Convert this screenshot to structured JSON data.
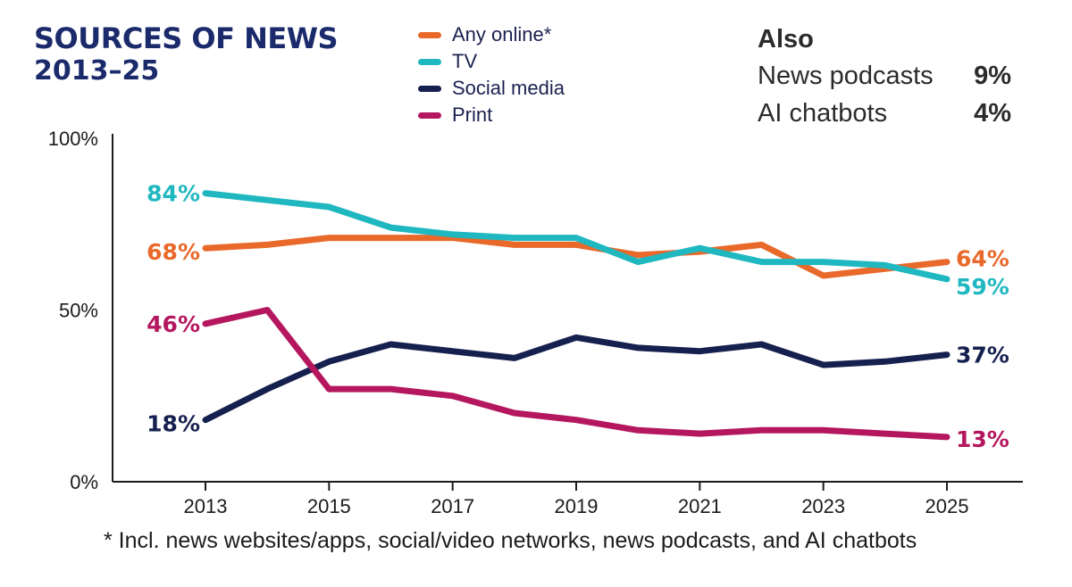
{
  "title": "SOURCES OF NEWS",
  "subtitle": "2013–25",
  "also": {
    "title": "Also",
    "items": [
      {
        "label": "News podcasts",
        "value": "9%"
      },
      {
        "label": "AI chatbots",
        "value": "4%"
      }
    ]
  },
  "footnote": "* Incl. news websites/apps, social/video networks, news podcasts, and AI chatbots",
  "chart_data": {
    "type": "line",
    "x": [
      2013,
      2014,
      2015,
      2016,
      2017,
      2018,
      2019,
      2020,
      2021,
      2022,
      2023,
      2024,
      2025
    ],
    "x_tick_labels": [
      "2013",
      "2015",
      "2017",
      "2019",
      "2021",
      "2023",
      "2025"
    ],
    "y_tick_labels": [
      "100%",
      "50%",
      "0%"
    ],
    "ylim": [
      0,
      100
    ],
    "grid": false,
    "legend_position": "top-center",
    "series": [
      {
        "name": "Any online*",
        "color": "#e8692a",
        "values": [
          68,
          69,
          71,
          71,
          71,
          69,
          69,
          66,
          67,
          69,
          60,
          62,
          64
        ],
        "start_label": "68%",
        "end_label": "64%"
      },
      {
        "name": "TV",
        "color": "#1fb8c0",
        "values": [
          84,
          82,
          80,
          74,
          72,
          71,
          71,
          64,
          68,
          64,
          64,
          63,
          59
        ],
        "start_label": "84%",
        "end_label": "59%"
      },
      {
        "name": "Social media",
        "color": "#16204f",
        "values": [
          18,
          27,
          35,
          40,
          38,
          36,
          42,
          39,
          38,
          40,
          34,
          35,
          37
        ],
        "start_label": "18%",
        "end_label": "37%"
      },
      {
        "name": "Print",
        "color": "#b5175f",
        "values": [
          46,
          50,
          27,
          27,
          25,
          20,
          18,
          15,
          14,
          15,
          15,
          14,
          13
        ],
        "start_label": "46%",
        "end_label": "13%"
      }
    ]
  }
}
